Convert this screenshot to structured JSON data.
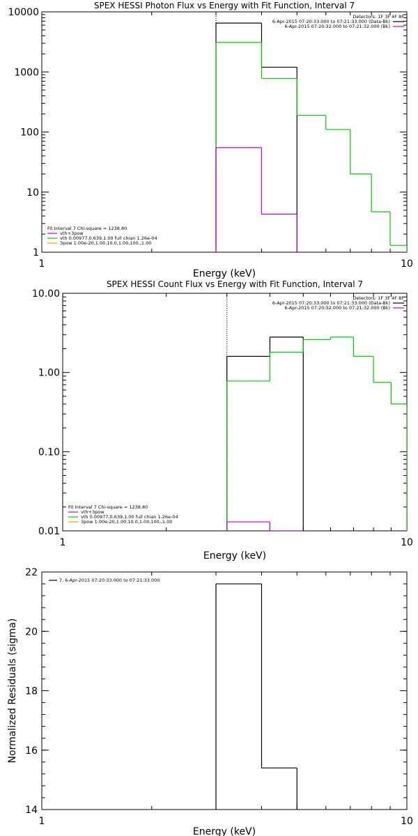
{
  "chart_data": [
    {
      "type": "line",
      "title": "SPEX HESSI Photon Flux vs Energy with Fit Function, Interval 7",
      "xlabel": "Energy (keV)",
      "ylabel": "",
      "xscale": "log",
      "yscale": "log",
      "xlim": [
        1,
        10
      ],
      "ylim": [
        1,
        10000
      ],
      "x_tick_labels": [
        "1",
        "10"
      ],
      "y_tick_labels": [
        "1",
        "10",
        "100",
        "1000",
        "10000"
      ],
      "vline_x": 3.0,
      "legend_top_right": {
        "header": "Detectors: 1F 3F 4F 8F",
        "lines": [
          {
            "text": "6-Apr-2015 07:20:33.000 to 07:21:33.000 (Data-Bk)",
            "color": "#000000"
          },
          {
            "text": "6-Apr-2015 07:20:32.000 to 07:21:32.000 (Bk)",
            "color": "#cc00cc"
          }
        ]
      },
      "legend_bottom_left": {
        "header": "Fit Interval  7   Chi-square = 1238.80",
        "lines": [
          {
            "text": "vth+3pow",
            "color": "#cc00cc"
          },
          {
            "text": "vth 0.00977,0.639,1.00   full chian 1.26e-04",
            "color": "#00cc00"
          },
          {
            "text": "3pow 1.00e-20,1.00,10.0,1.00,100.,1.00",
            "color": "#ddaa00"
          }
        ]
      },
      "series": [
        {
          "color": "#000000",
          "bins": [
            {
              "x0": 3.0,
              "x1": 4.0,
              "y": 6500
            },
            {
              "x0": 4.0,
              "x1": 5.0,
              "y": 1200
            }
          ]
        },
        {
          "color": "#00cc00",
          "bins": [
            {
              "x0": 3.0,
              "x1": 4.0,
              "y": 3100
            },
            {
              "x0": 4.0,
              "x1": 5.0,
              "y": 780
            },
            {
              "x0": 5.0,
              "x1": 6.0,
              "y": 190
            },
            {
              "x0": 6.0,
              "x1": 7.0,
              "y": 110
            },
            {
              "x0": 7.0,
              "x1": 8.0,
              "y": 20
            },
            {
              "x0": 8.0,
              "x1": 9.0,
              "y": 4.7
            },
            {
              "x0": 9.0,
              "x1": 10.0,
              "y": 1.3
            }
          ]
        },
        {
          "color": "#cc00cc",
          "bins": [
            {
              "x0": 3.0,
              "x1": 4.0,
              "y": 55
            },
            {
              "x0": 4.0,
              "x1": 5.0,
              "y": 4.3
            }
          ]
        }
      ]
    },
    {
      "type": "line",
      "title": "SPEX HESSI Count Flux vs Energy with Fit Function, Interval 7",
      "xlabel": "Energy (keV)",
      "ylabel": "",
      "xscale": "log",
      "yscale": "log",
      "xlim": [
        1,
        10
      ],
      "ylim": [
        0.01,
        10
      ],
      "x_tick_labels": [
        "1",
        "10"
      ],
      "y_tick_labels": [
        "0.01",
        "0.10",
        "1.00",
        "10.00"
      ],
      "vline_x": 3.0,
      "legend_top_right": {
        "header": "Detectors: 1F 3F 4F 8F",
        "lines": [
          {
            "text": "6-Apr-2015 07:20:33.000 to 07:21:33.000 (Data-Bk)",
            "color": "#000000"
          },
          {
            "text": "6-Apr-2015 07:20:32.000 to 07:21:32.000 (Bk)",
            "color": "#cc00cc"
          }
        ]
      },
      "legend_bottom_left": {
        "header": "Fit Interval  7   Chi-square = 1238.80",
        "lines": [
          {
            "text": "vth+3pow",
            "color": "#cc00cc"
          },
          {
            "text": "vth 0.00977,0.639,1.00   full chian 1.26e-04",
            "color": "#00cc00"
          },
          {
            "text": "3pow 1.00e-20,1.00,10.0,1.00,100.,1.00",
            "color": "#ddaa00"
          }
        ]
      },
      "series": [
        {
          "color": "#000000",
          "bins": [
            {
              "x0": 3.0,
              "x1": 4.0,
              "y": 1.6
            },
            {
              "x0": 4.0,
              "x1": 5.0,
              "y": 2.8
            }
          ]
        },
        {
          "color": "#00cc00",
          "bins": [
            {
              "x0": 3.0,
              "x1": 4.0,
              "y": 0.78
            },
            {
              "x0": 4.0,
              "x1": 5.0,
              "y": 1.8
            },
            {
              "x0": 5.0,
              "x1": 6.0,
              "y": 2.6
            },
            {
              "x0": 6.0,
              "x1": 7.0,
              "y": 2.8
            },
            {
              "x0": 7.0,
              "x1": 8.0,
              "y": 1.6
            },
            {
              "x0": 8.0,
              "x1": 9.0,
              "y": 0.75
            },
            {
              "x0": 9.0,
              "x1": 10.0,
              "y": 0.4
            }
          ]
        },
        {
          "color": "#cc00cc",
          "bins": [
            {
              "x0": 3.0,
              "x1": 4.0,
              "y": 0.013
            },
            {
              "x0": 4.0,
              "x1": 5.0,
              "y": 0.0098
            }
          ]
        }
      ]
    },
    {
      "type": "line",
      "title": "",
      "xlabel": "Energy (keV)",
      "ylabel": "Normalized Residuals (sigma)",
      "xscale": "log",
      "yscale": "linear",
      "xlim": [
        1,
        10
      ],
      "ylim": [
        14,
        22
      ],
      "x_tick_labels": [
        "1",
        "10"
      ],
      "y_ticks": [
        14,
        16,
        18,
        20,
        22
      ],
      "y_tick_labels": [
        "14",
        "16",
        "18",
        "20",
        "22"
      ],
      "vline_x": null,
      "legend_top_left": {
        "lines": [
          {
            "text": "7.  6-Apr-2015 07:20:33.000 to 07:21:33.000",
            "color": "#000000"
          }
        ]
      },
      "series": [
        {
          "color": "#000000",
          "bins": [
            {
              "x0": 3.0,
              "x1": 4.0,
              "y": 21.6
            },
            {
              "x0": 4.0,
              "x1": 5.0,
              "y": 15.4
            }
          ]
        }
      ]
    }
  ]
}
